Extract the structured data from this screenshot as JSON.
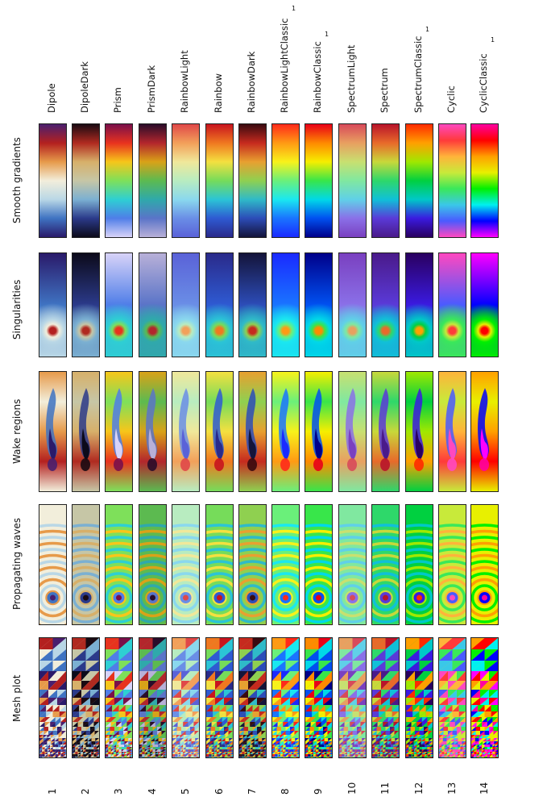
{
  "row_labels": [
    "Smooth gradients",
    "Singularities",
    "Wake regions",
    "Propagating waves",
    "Mesh plot"
  ],
  "colormaps": [
    {
      "name": "Dipole",
      "number": "1",
      "footnote": "",
      "stops": [
        "#4a1f6e",
        "#b3201f",
        "#e69a4a",
        "#f2eedb",
        "#b9d7e6",
        "#3f73c2",
        "#2a1a6a"
      ]
    },
    {
      "name": "DipoleDark",
      "number": "2",
      "footnote": "",
      "stops": [
        "#1a0a12",
        "#b02a20",
        "#d7b06a",
        "#c6c6a6",
        "#7bb0d2",
        "#2b3a8a",
        "#0c0a1a"
      ]
    },
    {
      "name": "Prism",
      "number": "3",
      "footnote": "",
      "stops": [
        "#7a0f4a",
        "#e8321e",
        "#f7c61a",
        "#7ee05a",
        "#2ecfd3",
        "#4f7ee8",
        "#d8d3f8"
      ]
    },
    {
      "name": "PrismDark",
      "number": "4",
      "footnote": "",
      "stops": [
        "#2a0c2a",
        "#b3262c",
        "#d9a218",
        "#5cba50",
        "#2fa9ab",
        "#5a74c8",
        "#b8b0d8"
      ]
    },
    {
      "name": "RainbowLight",
      "number": "5",
      "footnote": "",
      "stops": [
        "#e04848",
        "#f2a05a",
        "#f0e89a",
        "#b8ecc0",
        "#8ad8ee",
        "#6a8ee6",
        "#5a62d8"
      ]
    },
    {
      "name": "Rainbow",
      "number": "6",
      "footnote": "",
      "stops": [
        "#c8141e",
        "#f07820",
        "#f4e040",
        "#76dc5a",
        "#2bc4d6",
        "#2e5ad2",
        "#2a2a8a"
      ]
    },
    {
      "name": "RainbowDark",
      "number": "7",
      "footnote": "",
      "stops": [
        "#3a0a10",
        "#c62a1e",
        "#e8a030",
        "#8fd050",
        "#2fbac8",
        "#2c4cb8",
        "#14143a"
      ]
    },
    {
      "name": "RainbowLightClassic",
      "number": "8",
      "footnote": "1",
      "stops": [
        "#ff2a1a",
        "#ff9a14",
        "#f8f21a",
        "#6af07a",
        "#1ae8f0",
        "#1a74ff",
        "#1a2aff"
      ]
    },
    {
      "name": "RainbowClassic",
      "number": "9",
      "footnote": "1",
      "stops": [
        "#e80018",
        "#ff8a00",
        "#f6ee00",
        "#38e64a",
        "#00d8e8",
        "#0050f0",
        "#00008a"
      ]
    },
    {
      "name": "SpectrumLight",
      "number": "10",
      "footnote": "",
      "stops": [
        "#d84a5a",
        "#e8a060",
        "#c8e070",
        "#80e8a0",
        "#60d0e8",
        "#8a70e8",
        "#7a40c0"
      ]
    },
    {
      "name": "Spectrum",
      "number": "11",
      "footnote": "",
      "stops": [
        "#b8142a",
        "#e86a2a",
        "#c8d83a",
        "#2ed86a",
        "#10c0d8",
        "#5a3ad8",
        "#4a1a8a"
      ]
    },
    {
      "name": "SpectrumClassic",
      "number": "12",
      "footnote": "1",
      "stops": [
        "#ff2a00",
        "#ffa000",
        "#a0e800",
        "#00d040",
        "#00c8c8",
        "#3a1ae0",
        "#2a0060"
      ]
    },
    {
      "name": "Cyclic",
      "number": "13",
      "footnote": "",
      "stops": [
        "#ff48c0",
        "#ff3a3a",
        "#ffb43a",
        "#c8ea3a",
        "#3ae85a",
        "#3ac8e8",
        "#4a5aff",
        "#ff48c0"
      ]
    },
    {
      "name": "CyclicClassic",
      "number": "14",
      "footnote": "1",
      "stops": [
        "#ff00a0",
        "#ff0000",
        "#ffa000",
        "#e8f000",
        "#00f000",
        "#00f0f0",
        "#0000ff",
        "#ff00ff"
      ]
    }
  ]
}
